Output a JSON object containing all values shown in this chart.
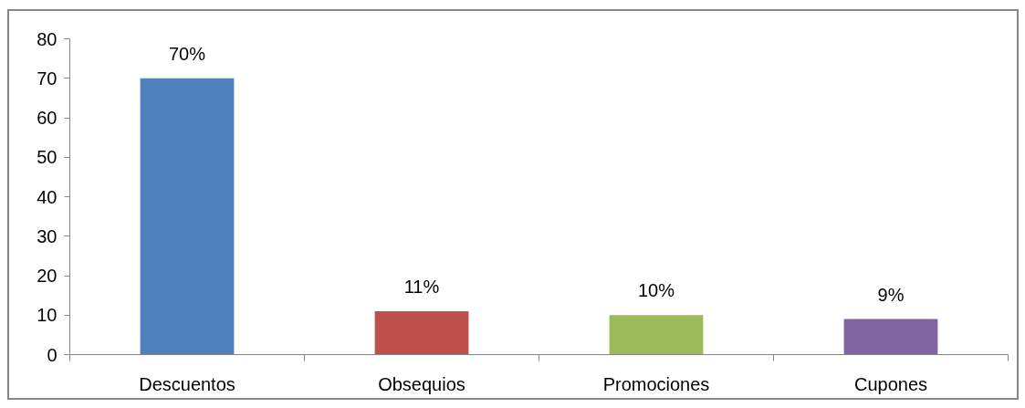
{
  "chart_data": {
    "type": "bar",
    "categories": [
      "Descuentos",
      "Obsequios",
      "Promociones",
      "Cupones"
    ],
    "values": [
      70,
      11,
      10,
      9
    ],
    "colors": [
      "#4f81bd",
      "#c0504d",
      "#9bbb59",
      "#8064a2"
    ],
    "value_labels": [
      "70%",
      "11%",
      "10%",
      "9%"
    ],
    "ylim": [
      0,
      80
    ],
    "yticks": [
      0,
      10,
      20,
      30,
      40,
      50,
      60,
      70,
      80
    ]
  }
}
